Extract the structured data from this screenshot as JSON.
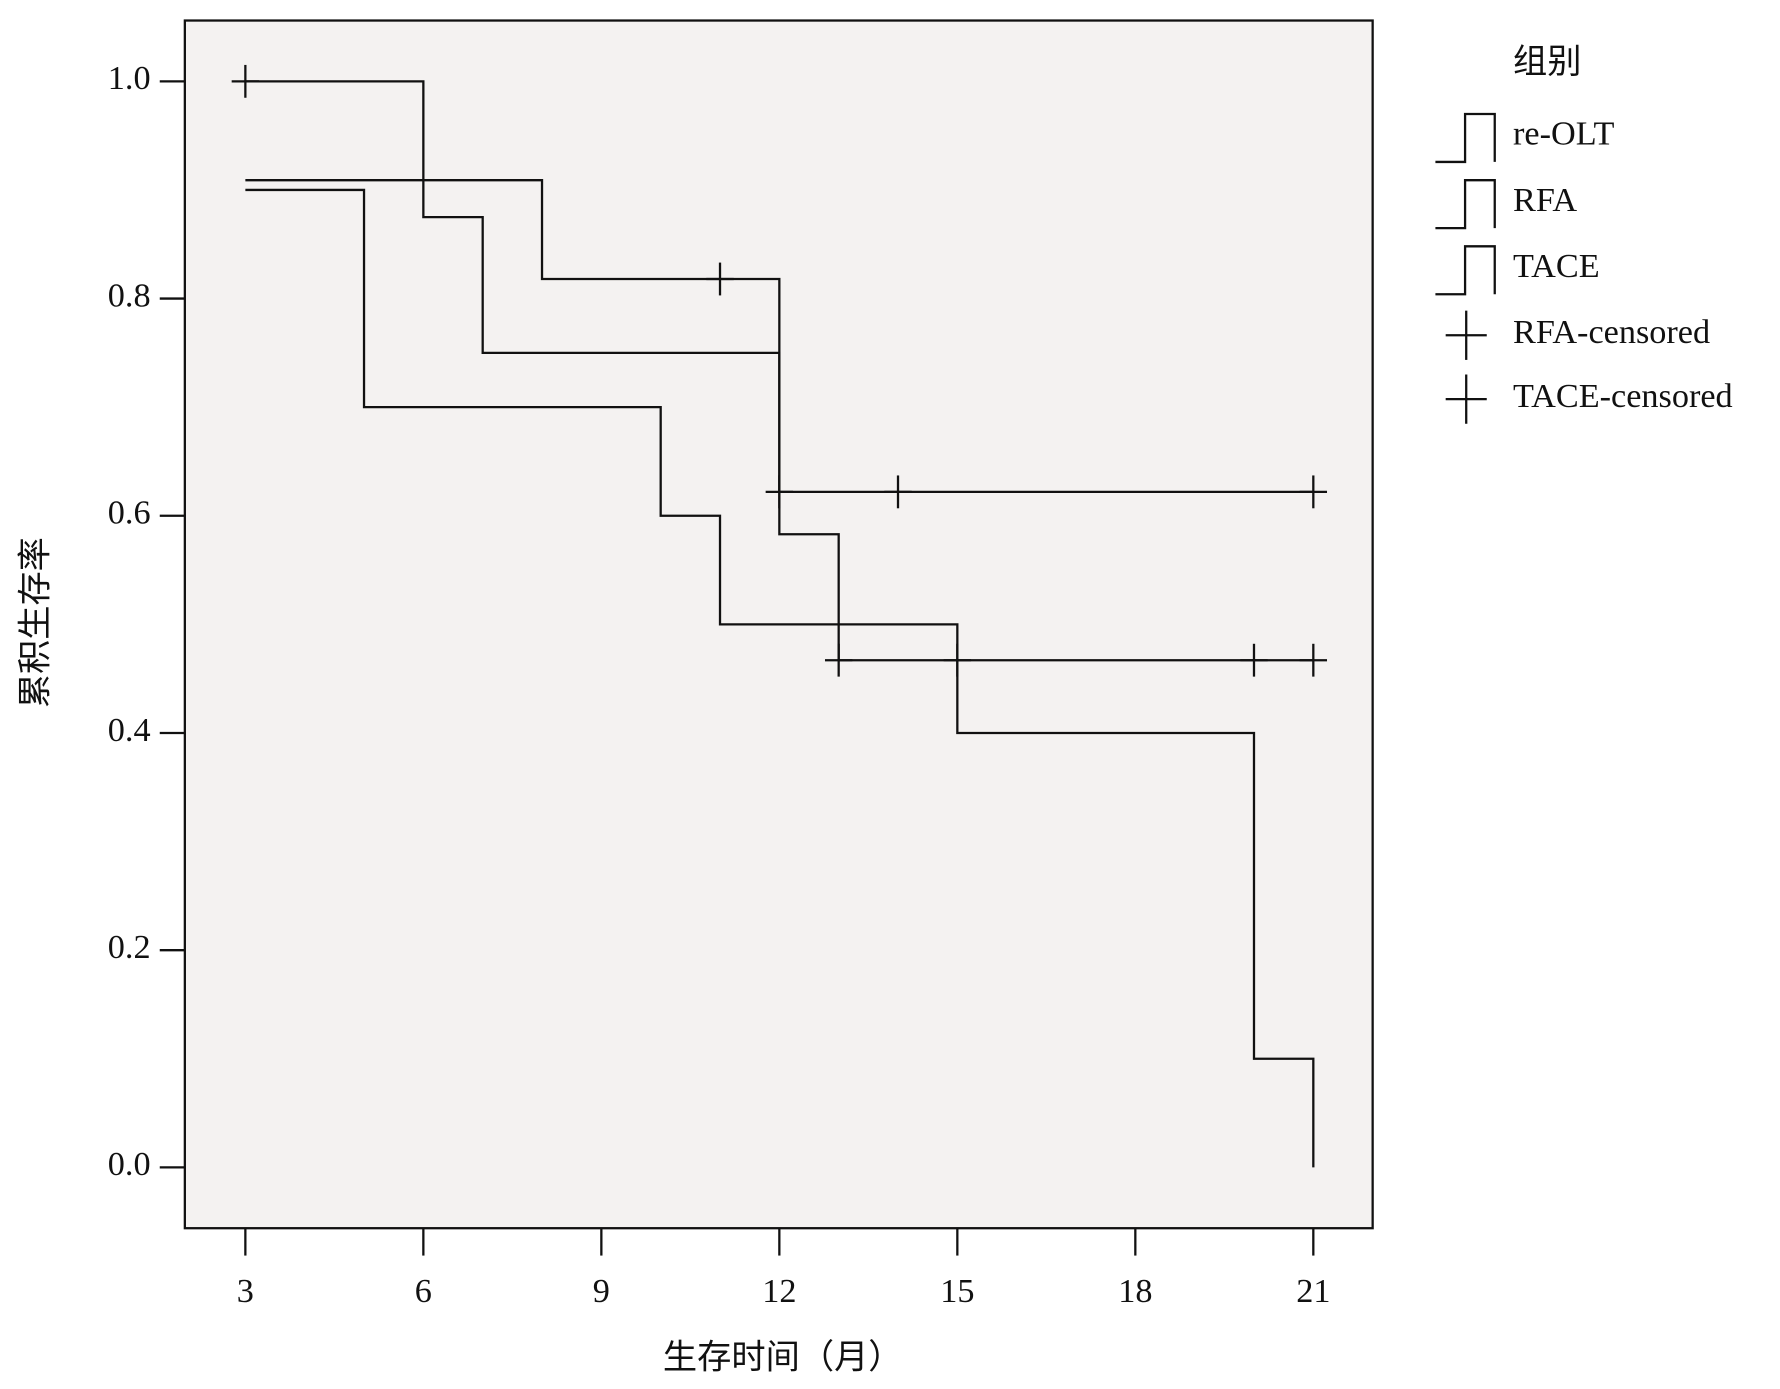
{
  "chart_data": {
    "type": "line",
    "step": true,
    "x_label": "生存时间（月）",
    "y_label": "累积生存率",
    "legend_title": "组别",
    "xlim": [
      1.98,
      22.0
    ],
    "ylim": [
      -0.056,
      1.056
    ],
    "xticks": [
      3,
      6,
      9,
      12,
      15,
      18,
      21
    ],
    "yticks": [
      {
        "value": 0,
        "label": "0.0"
      },
      0.2,
      0.4,
      0.6,
      0.8,
      {
        "value": 1,
        "label": "1.0"
      }
    ],
    "legend": "right",
    "series": [
      {
        "name": "re-OLT",
        "color": "#111111",
        "x": [
          3,
          5,
          10,
          11,
          15,
          20,
          21
        ],
        "values": [
          0.9,
          0.7,
          0.6,
          0.5,
          0.4,
          0.1,
          0.0
        ]
      },
      {
        "name": "RFA",
        "color": "#111111",
        "x": [
          3,
          8,
          12,
          21
        ],
        "values": [
          0.909,
          0.818,
          0.622,
          0.622
        ]
      },
      {
        "name": "TACE",
        "color": "#111111",
        "x": [
          3,
          6,
          7,
          12,
          13,
          21
        ],
        "values": [
          1.0,
          0.875,
          0.75,
          0.583,
          0.467,
          0.467
        ]
      },
      {
        "name": "RFA-censored",
        "color": "#111111",
        "marker": "+",
        "x": [
          11,
          12,
          14,
          21
        ],
        "values": [
          0.818,
          0.622,
          0.622,
          0.622
        ]
      },
      {
        "name": "TACE-censored",
        "color": "#111111",
        "marker": "+",
        "x": [
          3,
          13,
          15,
          20,
          21
        ],
        "values": [
          1.0,
          0.467,
          0.467,
          0.467,
          0.467
        ]
      }
    ]
  }
}
